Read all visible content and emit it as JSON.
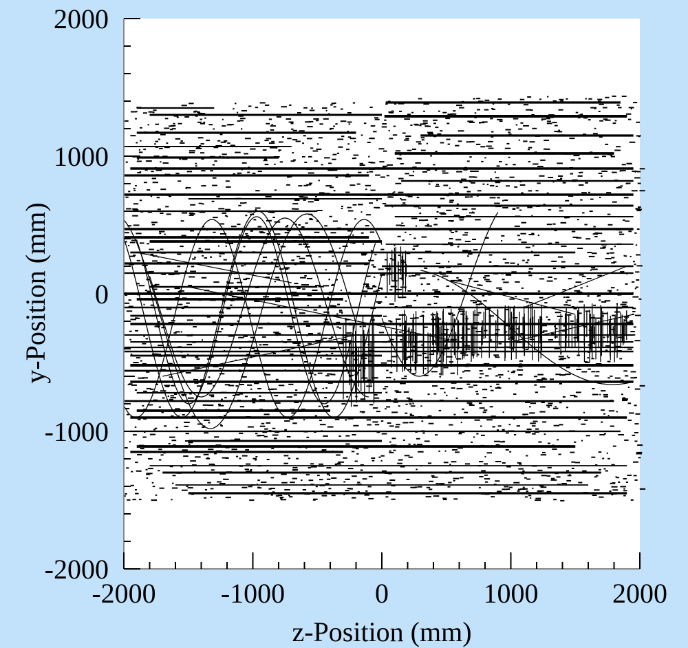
{
  "chart_data": {
    "type": "scatter",
    "title": "",
    "xlabel": "z-Position (mm)",
    "ylabel": "y-Position (mm)",
    "xlim": [
      -2000,
      2000
    ],
    "ylim": [
      -2000,
      2000
    ],
    "x_ticks": [
      {
        "value": -2000,
        "label": "-2000"
      },
      {
        "value": -1000,
        "label": "-1000"
      },
      {
        "value": 0,
        "label": "0"
      },
      {
        "value": 1000,
        "label": "1000"
      },
      {
        "value": 2000,
        "label": "2000"
      }
    ],
    "y_ticks": [
      {
        "value": -2000,
        "label": "-2000"
      },
      {
        "value": -1000,
        "label": "-1000"
      },
      {
        "value": 0,
        "label": "0"
      },
      {
        "value": 1000,
        "label": "1000"
      },
      {
        "value": 2000,
        "label": "2000"
      }
    ],
    "grid": false,
    "legend": "none",
    "colors": {
      "background": "#c2e2fb",
      "plot_area": "#ffffff",
      "marks": "#000000",
      "frame": "#888888"
    },
    "series": [
      {
        "kind": "horizontal-tracks",
        "segments": [
          {
            "y": 1390,
            "x": [
              30,
              1850
            ]
          },
          {
            "y": 1350,
            "x": [
              -1900,
              -1300
            ]
          },
          {
            "y": 1300,
            "x": [
              -1800,
              0
            ]
          },
          {
            "y": 1290,
            "x": [
              20,
              1900
            ]
          },
          {
            "y": 1170,
            "x": [
              -1900,
              -200
            ]
          },
          {
            "y": 1150,
            "x": [
              300,
              1950
            ]
          },
          {
            "y": 1070,
            "x": [
              -2000,
              -700
            ]
          },
          {
            "y": 1020,
            "x": [
              100,
              1800
            ]
          },
          {
            "y": 990,
            "x": [
              -1900,
              -800
            ]
          },
          {
            "y": 910,
            "x": [
              -1950,
              1950
            ]
          },
          {
            "y": 860,
            "x": [
              -2000,
              -100
            ]
          },
          {
            "y": 820,
            "x": [
              150,
              1950
            ]
          },
          {
            "y": 720,
            "x": [
              -2000,
              1950
            ]
          },
          {
            "y": 690,
            "x": [
              -1500,
              0
            ]
          },
          {
            "y": 640,
            "x": [
              20,
              1950
            ]
          },
          {
            "y": 600,
            "x": [
              -1950,
              -500
            ]
          },
          {
            "y": 560,
            "x": [
              100,
              1950
            ]
          },
          {
            "y": 470,
            "x": [
              -2000,
              1950
            ]
          },
          {
            "y": 410,
            "x": [
              -2000,
              -100
            ]
          },
          {
            "y": 380,
            "x": [
              -1800,
              0
            ]
          },
          {
            "y": 360,
            "x": [
              30,
              1950
            ]
          },
          {
            "y": 300,
            "x": [
              -1950,
              1500
            ]
          },
          {
            "y": 220,
            "x": [
              -2000,
              -100
            ]
          },
          {
            "y": 200,
            "x": [
              0,
              1950
            ]
          },
          {
            "y": 150,
            "x": [
              -2000,
              1950
            ]
          },
          {
            "y": 50,
            "x": [
              -1800,
              -500
            ]
          },
          {
            "y": 0,
            "x": [
              -2000,
              1950
            ]
          },
          {
            "y": -40,
            "x": [
              -1900,
              -300
            ]
          },
          {
            "y": -100,
            "x": [
              -2000,
              1950
            ]
          },
          {
            "y": -160,
            "x": [
              -1950,
              0
            ]
          },
          {
            "y": -220,
            "x": [
              -1950,
              1950
            ]
          },
          {
            "y": -300,
            "x": [
              -2000,
              1950
            ]
          },
          {
            "y": -350,
            "x": [
              -1950,
              1950
            ]
          },
          {
            "y": -390,
            "x": [
              -2000,
              1950
            ]
          },
          {
            "y": -420,
            "x": [
              -2000,
              1950
            ]
          },
          {
            "y": -450,
            "x": [
              -1950,
              0
            ]
          },
          {
            "y": -520,
            "x": [
              -1950,
              1950
            ]
          },
          {
            "y": -560,
            "x": [
              -2000,
              -200
            ]
          },
          {
            "y": -640,
            "x": [
              -1950,
              1950
            ]
          },
          {
            "y": -720,
            "x": [
              -1900,
              0
            ]
          },
          {
            "y": -780,
            "x": [
              -2000,
              1800
            ]
          },
          {
            "y": -850,
            "x": [
              -1900,
              -400
            ]
          },
          {
            "y": -900,
            "x": [
              -1950,
              1900
            ]
          },
          {
            "y": -1000,
            "x": [
              -1950,
              1850
            ]
          },
          {
            "y": -1070,
            "x": [
              -1500,
              0
            ]
          },
          {
            "y": -1110,
            "x": [
              -1900,
              1500
            ]
          },
          {
            "y": -1150,
            "x": [
              -1950,
              -300
            ]
          },
          {
            "y": -1250,
            "x": [
              -1800,
              1900
            ]
          },
          {
            "y": -1300,
            "x": [
              -1700,
              1700
            ]
          },
          {
            "y": -1390,
            "x": [
              -1600,
              1600
            ]
          },
          {
            "y": -1450,
            "x": [
              -1500,
              1900
            ]
          }
        ]
      },
      {
        "kind": "helical-tracks",
        "curves": [
          {
            "amplitude": 750,
            "offset": -150,
            "period": 1180,
            "phase": 0.4,
            "x": [
              -2000,
              0
            ]
          },
          {
            "amplitude": 720,
            "offset": -180,
            "period": 1180,
            "phase": 2.3,
            "x": [
              -2000,
              0
            ]
          },
          {
            "amplitude": 680,
            "offset": -120,
            "period": 1050,
            "phase": 1.1,
            "x": [
              -1900,
              -50
            ]
          },
          {
            "amplitude": 780,
            "offset": -200,
            "period": 1500,
            "phase": 4.0,
            "x": [
              -2000,
              -200
            ]
          },
          {
            "amplitude": 650,
            "offset": -100,
            "period": 1300,
            "phase": 5.2,
            "x": [
              -1800,
              -100
            ]
          },
          {
            "amplitude": 650,
            "offset": 50,
            "period": 1500,
            "phase": 3.5,
            "x": [
              0,
              900
            ]
          },
          {
            "amplitude": 420,
            "offset": -240,
            "period": 3200,
            "phase": 1.2,
            "x": [
              300,
              1950
            ]
          }
        ]
      },
      {
        "kind": "inclined-tracks",
        "segments": [
          {
            "x": [
              -1900,
              -700
            ],
            "y": [
              300,
              80
            ]
          },
          {
            "x": [
              -1500,
              600
            ],
            "y": [
              50,
              -350
            ]
          },
          {
            "x": [
              -1700,
              -200
            ],
            "y": [
              -600,
              -300
            ]
          },
          {
            "x": [
              500,
              1500
            ],
            "y": [
              100,
              -150
            ]
          },
          {
            "x": [
              1000,
              1950
            ],
            "y": [
              -350,
              -150
            ]
          },
          {
            "x": [
              1100,
              1900
            ],
            "y": [
              -100,
              200
            ]
          }
        ]
      },
      {
        "kind": "vertical-clusters",
        "groups": [
          {
            "x": [
              -300,
              -50
            ],
            "y": [
              -870,
              -150
            ]
          },
          {
            "x": [
              40,
              220
            ],
            "y": [
              -60,
              400
            ]
          },
          {
            "x": [
              50,
              600
            ],
            "y": [
              -600,
              -100
            ]
          },
          {
            "x": [
              620,
              1900
            ],
            "y": [
              -500,
              -70
            ]
          }
        ]
      },
      {
        "kind": "noise-density",
        "regions": [
          {
            "x": [
              -2000,
              0
            ],
            "y": [
              -1500,
              1400
            ],
            "points": 1400
          },
          {
            "x": [
              0,
              2000
            ],
            "y": [
              -1500,
              1450
            ],
            "points": 1400
          }
        ]
      }
    ]
  }
}
